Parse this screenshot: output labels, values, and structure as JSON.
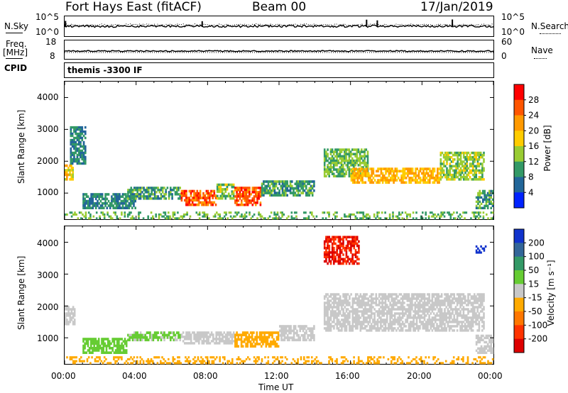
{
  "header": {
    "station": "Fort Hays East (fitACF)",
    "beam": "Beam 00",
    "date": "17/Jan/2019"
  },
  "side_labels": {
    "nsky": "N.Sky",
    "freq_line1": "Freq.",
    "freq_line2": "[MHz]",
    "cpid": "CPID",
    "nsearch": "N.Search",
    "nave": "Nave"
  },
  "ticks": {
    "noise_left": [
      "10^5",
      "10^0"
    ],
    "noise_right": [
      "10^5",
      "10^0"
    ],
    "freq_left": [
      "18",
      "8"
    ],
    "freq_right": [
      "60",
      "0"
    ],
    "range": [
      "4000",
      "3000",
      "2000",
      "1000"
    ],
    "time": [
      "00:00",
      "04:00",
      "08:00",
      "12:00",
      "16:00",
      "20:00",
      "00:00"
    ]
  },
  "cpid_text": "themis -3300 IF",
  "axis_labels": {
    "x": "Time UT",
    "y_power": "Slant Range [km]",
    "y_velocity": "Slant Range [km]",
    "power_bar": "Power [dB]",
    "velocity_bar": "Velocity [m s⁻¹]"
  },
  "colorbars": {
    "power": {
      "labels": [
        "28",
        "24",
        "20",
        "16",
        "12",
        "8",
        "4"
      ],
      "colors": [
        "#ff0000",
        "#ff5500",
        "#ff9900",
        "#ffcc00",
        "#99cc33",
        "#339966",
        "#226699",
        "#0022ff"
      ]
    },
    "velocity": {
      "labels": [
        "200",
        "100",
        "50",
        "15",
        "-15",
        "-50",
        "-100",
        "-200"
      ],
      "colors": [
        "#1133cc",
        "#336699",
        "#339966",
        "#66cc33",
        "#c8c8c8",
        "#ffaa00",
        "#ff7700",
        "#ff3300",
        "#dd0000"
      ]
    }
  },
  "chart_data": [
    {
      "type": "heatmap",
      "title": "Power",
      "xlabel": "Time UT",
      "ylabel": "Slant Range [km]",
      "x_range_hours": [
        0,
        24
      ],
      "y_range_km": [
        180,
        4500
      ],
      "color_label": "Power [dB]",
      "color_ticks": [
        4,
        8,
        12,
        16,
        20,
        24,
        28
      ],
      "echo_regions": [
        {
          "t0": 0.0,
          "t1": 0.5,
          "r0": 1400,
          "r1": 1900,
          "value": 18
        },
        {
          "t0": 0.3,
          "t1": 1.2,
          "r0": 1900,
          "r1": 3100,
          "value": 8
        },
        {
          "t0": 1.0,
          "t1": 4.0,
          "r0": 500,
          "r1": 1000,
          "value": 8
        },
        {
          "t0": 3.5,
          "t1": 6.5,
          "r0": 800,
          "r1": 1200,
          "value": 10
        },
        {
          "t0": 6.5,
          "t1": 8.5,
          "r0": 600,
          "r1": 1100,
          "value": 26
        },
        {
          "t0": 8.5,
          "t1": 9.5,
          "r0": 800,
          "r1": 1300,
          "value": 14
        },
        {
          "t0": 9.5,
          "t1": 11.0,
          "r0": 600,
          "r1": 1200,
          "value": 26
        },
        {
          "t0": 11.0,
          "t1": 14.0,
          "r0": 900,
          "r1": 1400,
          "value": 10
        },
        {
          "t0": 14.5,
          "t1": 17.0,
          "r0": 1500,
          "r1": 2400,
          "value": 12
        },
        {
          "t0": 16.0,
          "t1": 21.0,
          "r0": 1300,
          "r1": 1800,
          "value": 20
        },
        {
          "t0": 21.0,
          "t1": 23.5,
          "r0": 1400,
          "r1": 2300,
          "value": 14
        },
        {
          "t0": 23.0,
          "t1": 24.0,
          "r0": 500,
          "r1": 1100,
          "value": 10
        },
        {
          "t0": 0.0,
          "t1": 24.0,
          "r0": 180,
          "r1": 420,
          "value": 12
        }
      ]
    },
    {
      "type": "heatmap",
      "title": "Velocity",
      "xlabel": "Time UT",
      "ylabel": "Slant Range [km]",
      "x_range_hours": [
        0,
        24
      ],
      "y_range_km": [
        180,
        4500
      ],
      "color_label": "Velocity [m s⁻¹]",
      "color_ticks": [
        -200,
        -100,
        -50,
        -15,
        15,
        50,
        100,
        200
      ],
      "echo_regions": [
        {
          "t0": 0.0,
          "t1": 0.6,
          "r0": 1400,
          "r1": 2000,
          "value": 0
        },
        {
          "t0": 1.0,
          "t1": 3.5,
          "r0": 500,
          "r1": 1000,
          "value": 30
        },
        {
          "t0": 3.5,
          "t1": 6.5,
          "r0": 900,
          "r1": 1200,
          "value": 20
        },
        {
          "t0": 6.5,
          "t1": 9.5,
          "r0": 800,
          "r1": 1200,
          "value": 0
        },
        {
          "t0": 9.5,
          "t1": 12.0,
          "r0": 700,
          "r1": 1200,
          "value": -40
        },
        {
          "t0": 12.0,
          "t1": 14.0,
          "r0": 900,
          "r1": 1400,
          "value": 0
        },
        {
          "t0": 14.5,
          "t1": 23.5,
          "r0": 1200,
          "r1": 2400,
          "value": 0
        },
        {
          "t0": 23.0,
          "t1": 24.0,
          "r0": 500,
          "r1": 1100,
          "value": 0
        },
        {
          "t0": 0.0,
          "t1": 24.0,
          "r0": 180,
          "r1": 420,
          "value": -30
        },
        {
          "t0": 14.5,
          "t1": 16.5,
          "r0": 3300,
          "r1": 4200,
          "value": -200
        },
        {
          "t0": 23.0,
          "t1": 23.6,
          "r0": 3650,
          "r1": 3900,
          "value": 250
        }
      ]
    }
  ]
}
